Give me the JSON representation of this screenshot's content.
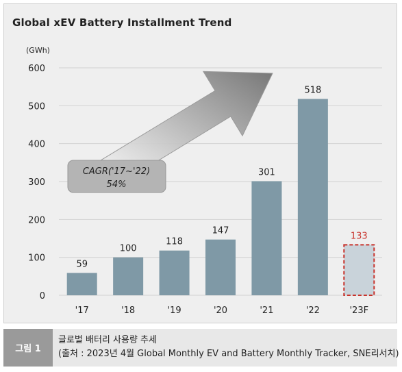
{
  "chart_data": {
    "type": "bar",
    "title": "Global xEV Battery Installment Trend",
    "unit_label": "(GWh)",
    "categories": [
      "'17",
      "'18",
      "'19",
      "'20",
      "'21",
      "'22",
      "'23F"
    ],
    "values": [
      59,
      100,
      118,
      147,
      301,
      518,
      133
    ],
    "forecast_index": 6,
    "ylim": [
      0,
      600
    ],
    "yticks": [
      0,
      100,
      200,
      300,
      400,
      500,
      600
    ],
    "grid": true,
    "annotation": {
      "line1": "CAGR('17~'22)",
      "line2": "54%"
    },
    "colors": {
      "bar": "#7f99a6",
      "forecast_fill": "#c9d3da",
      "forecast_border": "#c8322b",
      "forecast_label": "#c8322b",
      "grid": "#d2d2d2"
    }
  },
  "caption": {
    "badge": "그림 1",
    "line1": "글로벌 배터리 사용량 추세",
    "line2": "(출처 : 2023년 4월 Global Monthly EV and Battery Monthly Tracker, SNE리서치)"
  }
}
